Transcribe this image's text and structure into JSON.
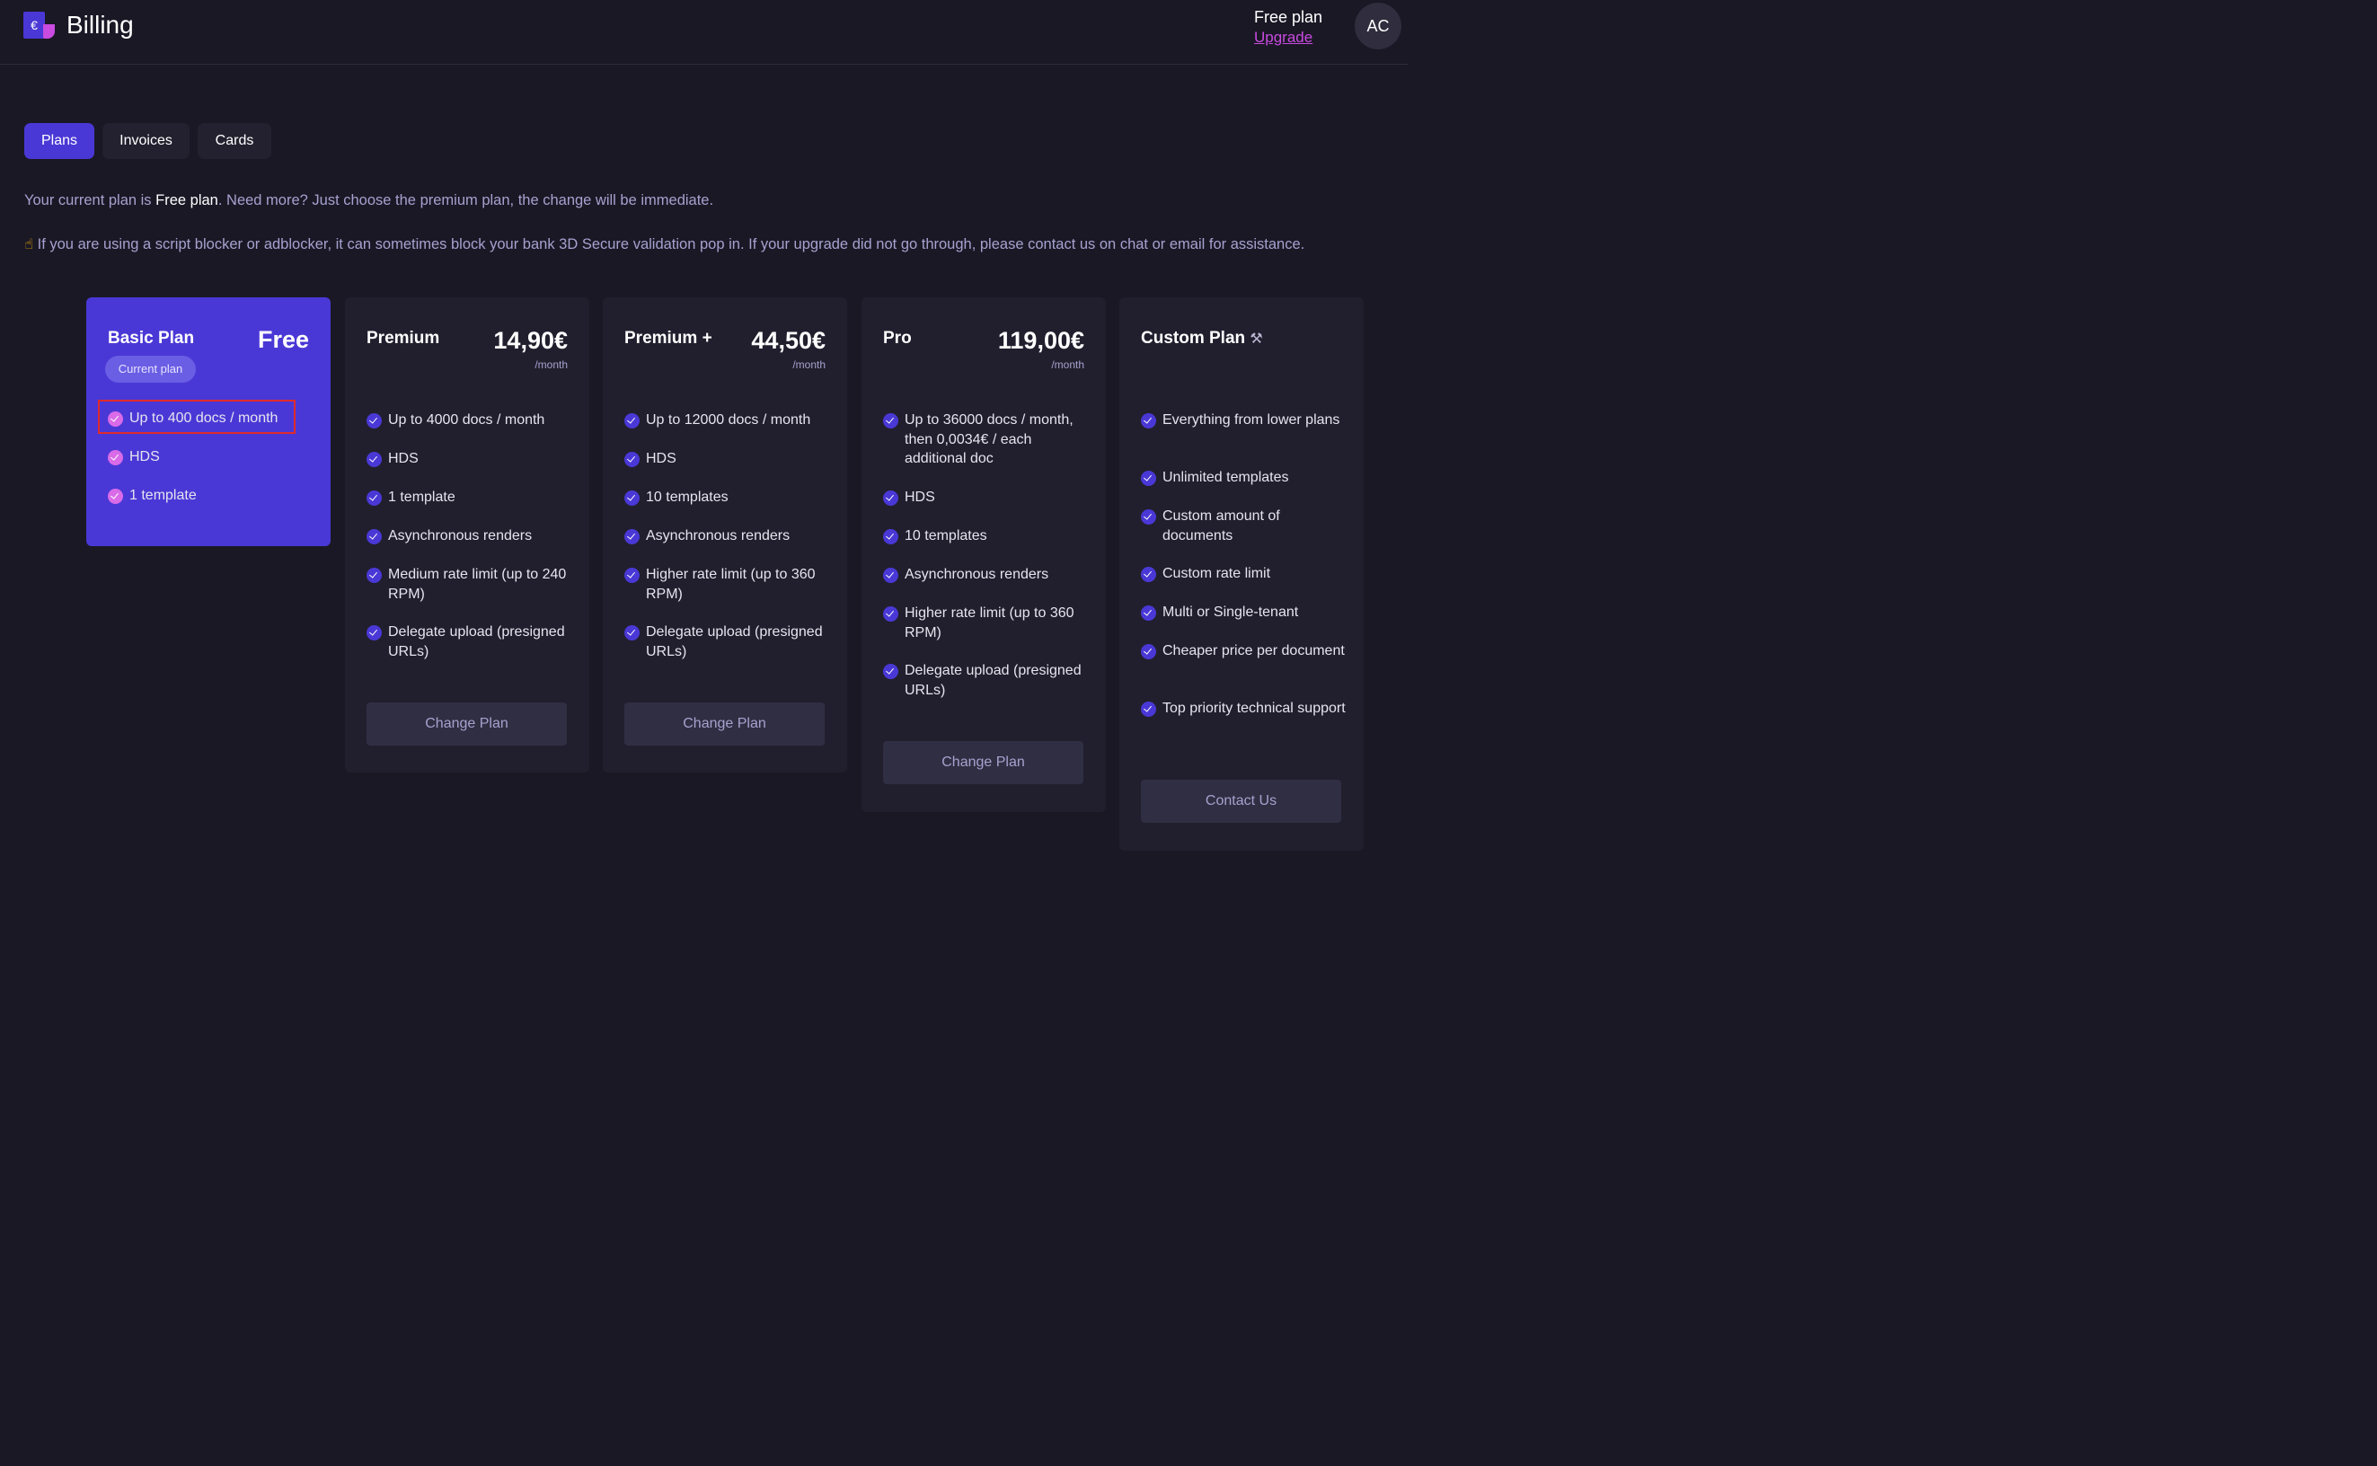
{
  "header": {
    "logo_symbol": "€",
    "title": "Billing",
    "plan_name": "Free plan",
    "upgrade_label": "Upgrade",
    "avatar_initials": "AC"
  },
  "tabs": [
    {
      "label": "Plans",
      "active": true
    },
    {
      "label": "Invoices",
      "active": false
    },
    {
      "label": "Cards",
      "active": false
    }
  ],
  "info": {
    "line1_prefix": "Your current plan is ",
    "line1_plan": "Free plan",
    "line1_suffix": ". Need more? Just choose the premium plan, the change will be immediate.",
    "line2_icon": "☝",
    "line2_text": " If you are using a script blocker or adblocker, it can sometimes block your bank 3D Secure validation pop in. If your upgrade did not go through, please contact us on chat or email for assistance."
  },
  "plans": [
    {
      "name": "Basic Plan",
      "price": "Free",
      "badge": "Current plan",
      "features": [
        "Up to 400 docs / month",
        "HDS",
        "1 template"
      ]
    },
    {
      "name": "Premium",
      "price": "14,90€",
      "period": "/month",
      "features": [
        "Up to 4000 docs / month",
        "HDS",
        "1 template",
        "Asynchronous renders",
        "Medium rate limit (up to 240 RPM)",
        "Delegate upload (presigned URLs)"
      ],
      "button": "Change Plan"
    },
    {
      "name": "Premium +",
      "price": "44,50€",
      "period": "/month",
      "features": [
        "Up to 12000 docs / month",
        "HDS",
        "10 templates",
        "Asynchronous renders",
        "Higher rate limit (up to 360 RPM)",
        "Delegate upload (presigned URLs)"
      ],
      "button": "Change Plan"
    },
    {
      "name": "Pro",
      "price": "119,00€",
      "period": "/month",
      "features": [
        "Up to 36000 docs / month, then 0,0034€ / each additional doc",
        "HDS",
        "10 templates",
        "Asynchronous renders",
        "Higher rate limit (up to 360 RPM)",
        "Delegate upload (presigned URLs)"
      ],
      "button": "Change Plan"
    },
    {
      "name": "Custom Plan",
      "name_icon": "⚒",
      "features": [
        "Everything from lower plans",
        "Unlimited templates",
        "Custom amount of documents",
        "Custom rate limit",
        "Multi or Single-tenant",
        "Cheaper price per document",
        "Top priority technical support"
      ],
      "button": "Contact Us"
    }
  ]
}
